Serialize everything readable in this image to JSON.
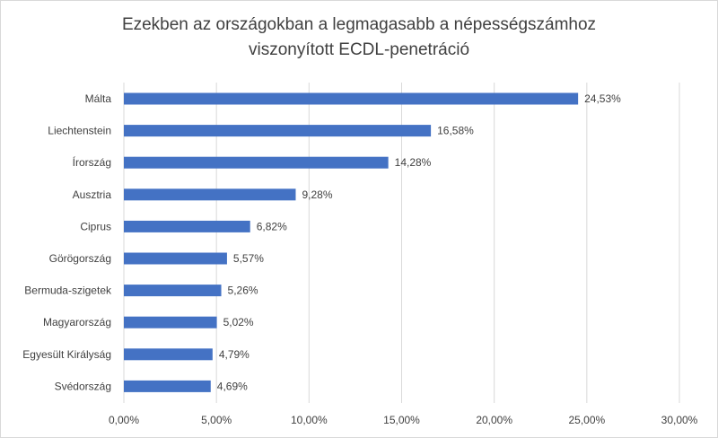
{
  "chart_data": {
    "type": "bar",
    "orientation": "horizontal",
    "title_lines": [
      "Ezekben  az országokban a legmagasabb a népességszámhoz",
      "viszonyított ECDL-penetráció"
    ],
    "categories": [
      "Málta",
      "Liechtenstein",
      "Írország",
      "Ausztria",
      "Ciprus",
      "Görögország",
      "Bermuda-szigetek",
      "Magyarország",
      "Egyesült Királyság",
      "Svédország"
    ],
    "values": [
      24.53,
      16.58,
      14.28,
      9.28,
      6.82,
      5.57,
      5.26,
      5.02,
      4.79,
      4.69
    ],
    "data_labels": [
      "24,53%",
      "16,58%",
      "14,28%",
      "9,28%",
      "6,82%",
      "5,57%",
      "5,26%",
      "5,02%",
      "4,79%",
      "4,69%"
    ],
    "xlim": [
      0,
      30
    ],
    "xticks": [
      0,
      5,
      10,
      15,
      20,
      25,
      30
    ],
    "xtick_labels": [
      "0,00%",
      "5,00%",
      "10,00%",
      "15,00%",
      "20,00%",
      "25,00%",
      "30,00%"
    ],
    "grid": true,
    "legend": "none",
    "bar_color": "#4472c4",
    "grid_color": "#d9d9d9",
    "text_color": "#404040"
  }
}
